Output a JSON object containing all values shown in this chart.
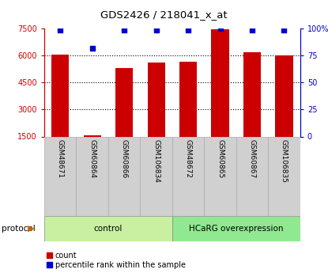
{
  "title": "GDS2426 / 218041_x_at",
  "samples": [
    "GSM48671",
    "GSM60864",
    "GSM60866",
    "GSM106834",
    "GSM48672",
    "GSM60865",
    "GSM60867",
    "GSM106835"
  ],
  "counts": [
    6050,
    1550,
    5300,
    5600,
    5650,
    7450,
    6200,
    6000
  ],
  "percentile_ranks": [
    99,
    82,
    99,
    99,
    99,
    100,
    99,
    99
  ],
  "groups": [
    {
      "label": "control",
      "start": 0,
      "end": 4,
      "color": "#c8f0a0"
    },
    {
      "label": "HCaRG overexpression",
      "start": 4,
      "end": 8,
      "color": "#90e890"
    }
  ],
  "bar_color": "#cc0000",
  "dot_color": "#0000cc",
  "left_axis_color": "#cc0000",
  "right_axis_color": "#0000cc",
  "ylim_left": [
    1500,
    7500
  ],
  "ylim_right": [
    0,
    100
  ],
  "yticks_left": [
    1500,
    3000,
    4500,
    6000,
    7500
  ],
  "yticks_right": [
    0,
    25,
    50,
    75,
    100
  ],
  "grid_lines": [
    6000,
    4500,
    3000
  ],
  "legend_items": [
    {
      "label": "count",
      "color": "#cc0000"
    },
    {
      "label": "percentile rank within the sample",
      "color": "#0000cc"
    }
  ],
  "protocol_label": "protocol",
  "background_color": "#ffffff",
  "tick_label_area_color": "#d0d0d0",
  "bar_width": 0.55,
  "figwidth": 4.15,
  "figheight": 3.45,
  "dpi": 100
}
